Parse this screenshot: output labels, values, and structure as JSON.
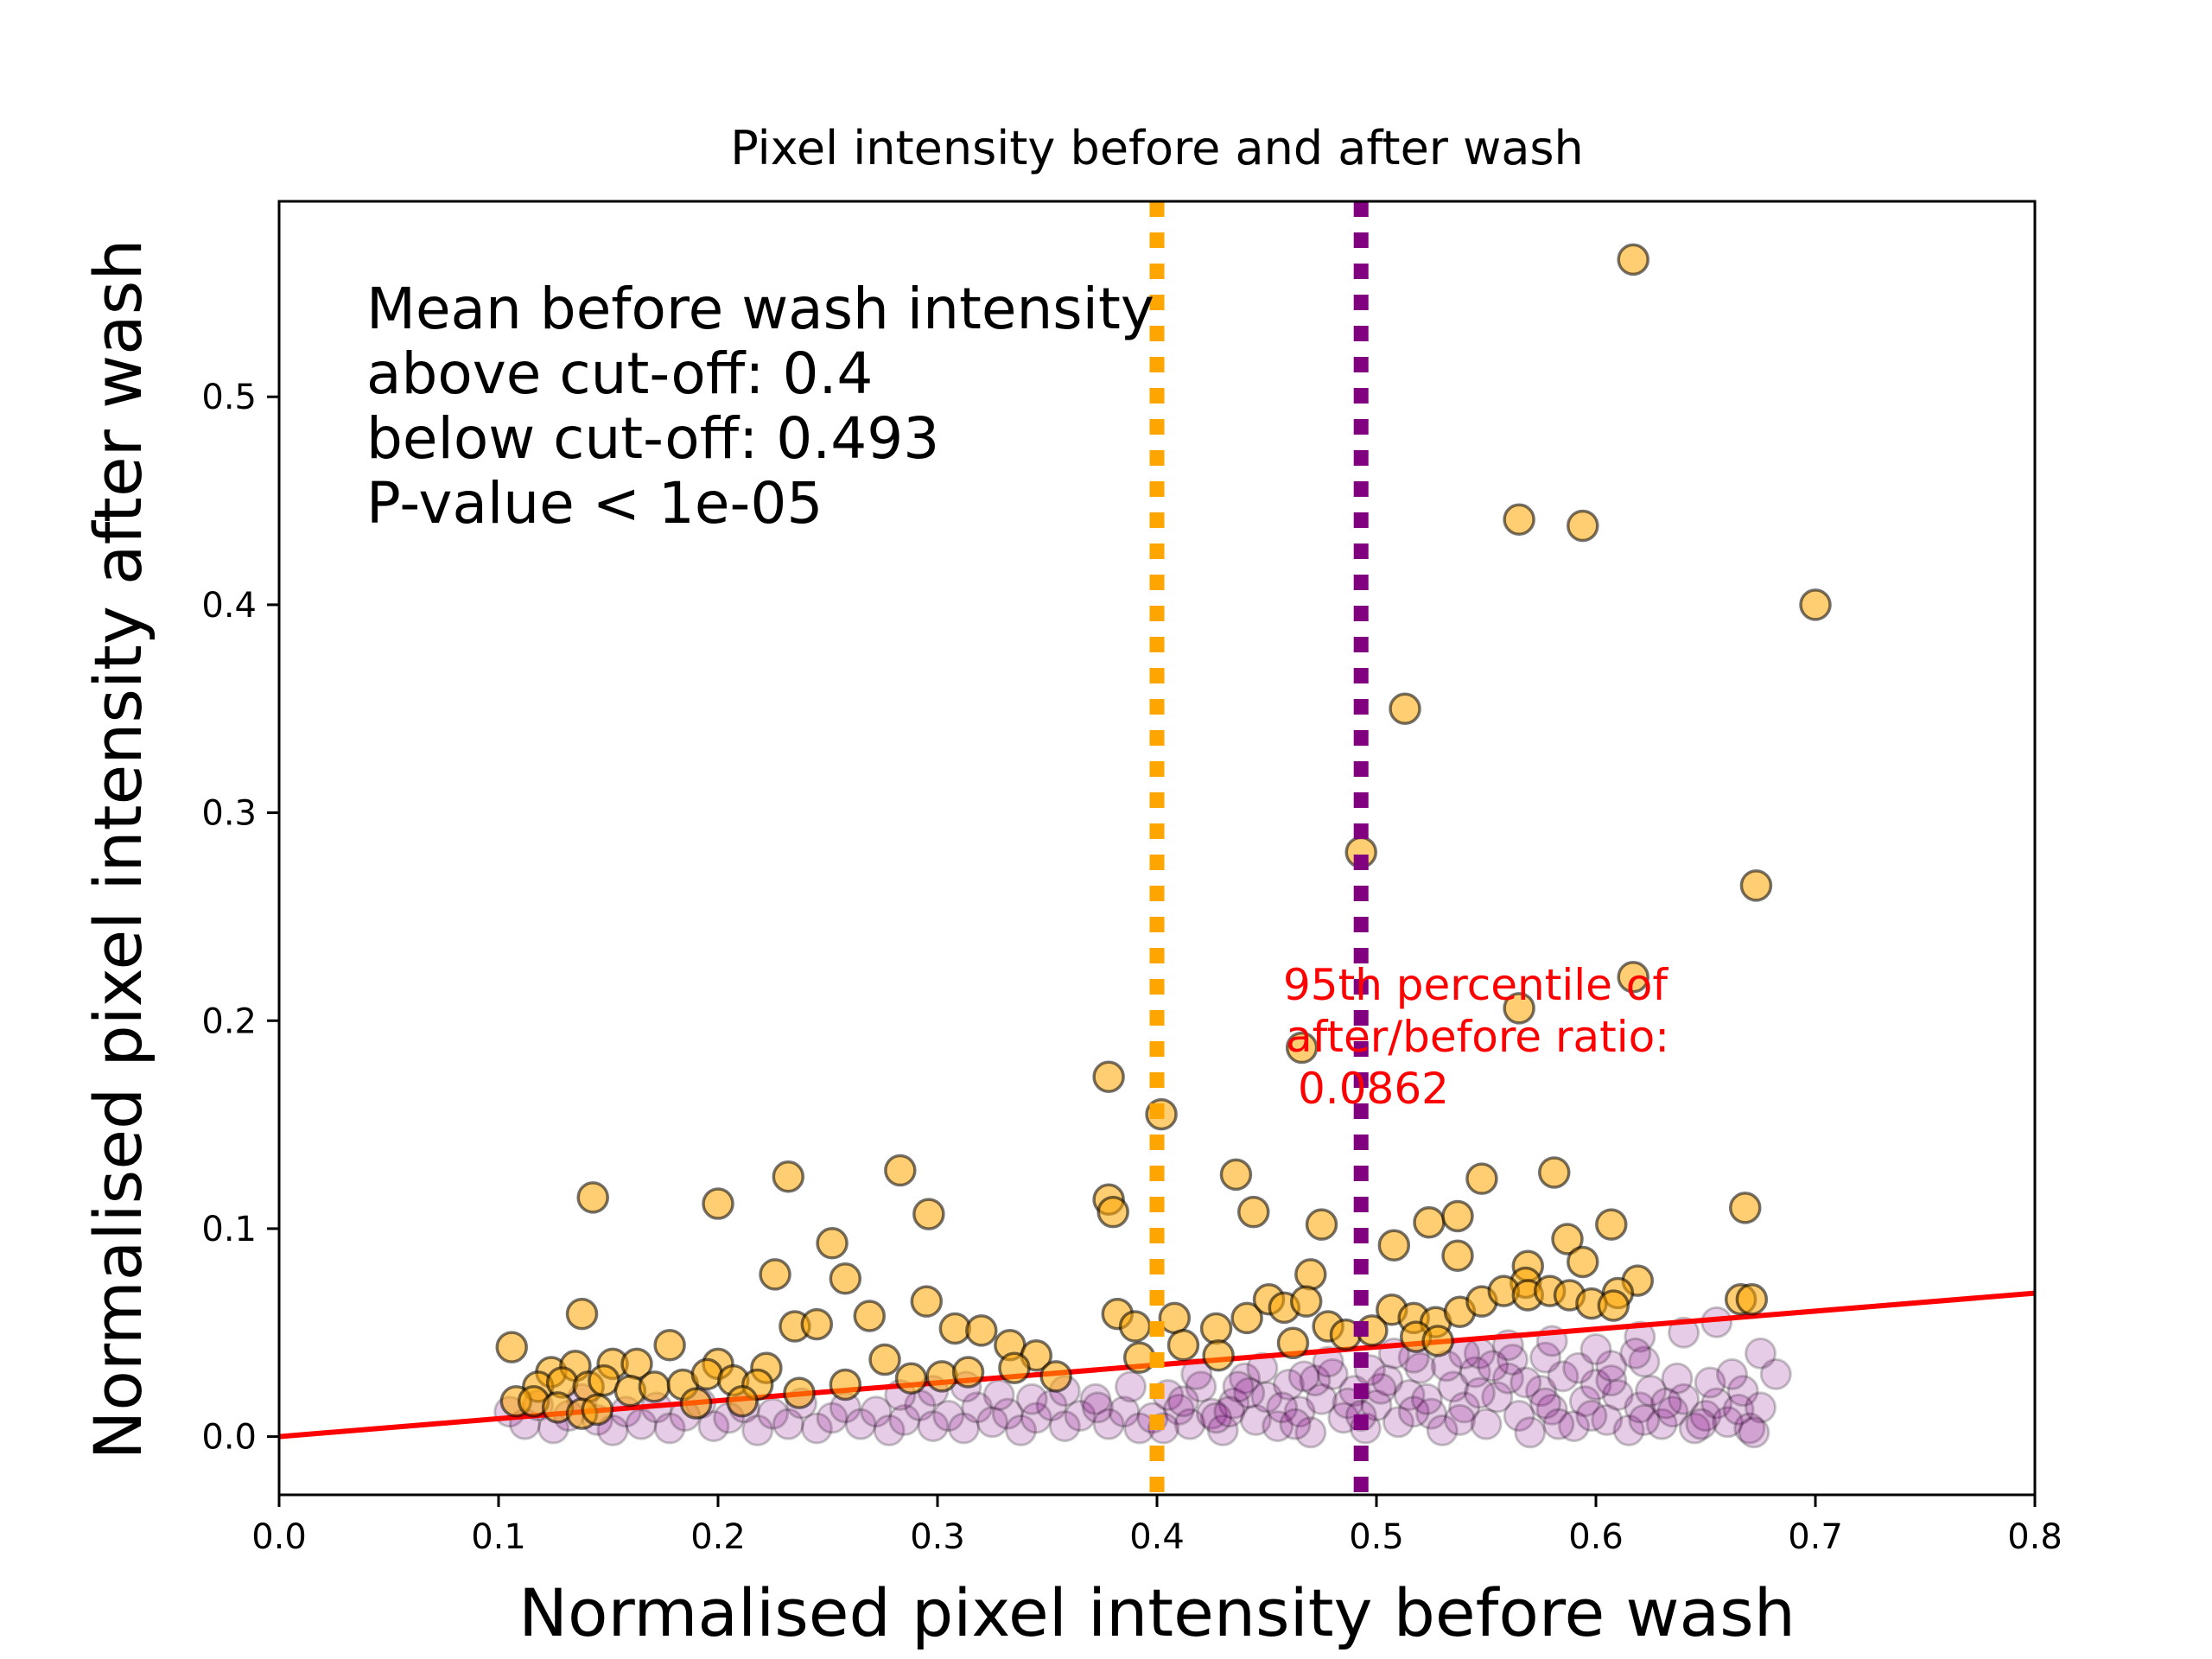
{
  "chart_data": {
    "type": "scatter",
    "title": "Pixel intensity before and after wash",
    "xlabel": "Normalised pixel intensity before wash",
    "ylabel": "Normalised pixel intensity after wash",
    "xlim": [
      0.0,
      0.8
    ],
    "ylim": [
      -0.028,
      0.594
    ],
    "x_ticks": [
      "0.0",
      "0.1",
      "0.2",
      "0.3",
      "0.4",
      "0.5",
      "0.6",
      "0.7",
      "0.8"
    ],
    "y_ticks": [
      "0.0",
      "0.1",
      "0.2",
      "0.3",
      "0.4",
      "0.5"
    ],
    "grid": false,
    "colors": {
      "above": "#ffa500",
      "below": "#800080",
      "fit_line": "#ff0000",
      "cutoff_above_line": "#ffa500",
      "cutoff_below_line": "#800080",
      "annotation": "#ff0000"
    },
    "stats_text": [
      "Mean before wash intensity",
      "above cut-off: 0.4",
      "below cut-off: 0.493",
      "P-value < 1e-05"
    ],
    "percentile_text": [
      "95th percentile of",
      "after/before ratio:",
      "0.0862"
    ],
    "vlines": [
      {
        "x": 0.4,
        "color": "#ffa500",
        "style": "dotted"
      },
      {
        "x": 0.493,
        "color": "#800080",
        "style": "dotted"
      }
    ],
    "fit_line": {
      "slope": 0.0862,
      "intercept": 0.0,
      "x_range": [
        0.0,
        0.8
      ]
    },
    "series": [
      {
        "group": "below",
        "points": [
          [
            0.105,
            0.012
          ],
          [
            0.112,
            0.006
          ],
          [
            0.118,
            0.015
          ],
          [
            0.125,
            0.004
          ],
          [
            0.132,
            0.01
          ],
          [
            0.138,
            0.018
          ],
          [
            0.145,
            0.008
          ],
          [
            0.152,
            0.003
          ],
          [
            0.158,
            0.012
          ],
          [
            0.165,
            0.006
          ],
          [
            0.172,
            0.014
          ],
          [
            0.178,
            0.004
          ],
          [
            0.185,
            0.01
          ],
          [
            0.192,
            0.016
          ],
          [
            0.198,
            0.005
          ],
          [
            0.205,
            0.009
          ],
          [
            0.212,
            0.014
          ],
          [
            0.218,
            0.003
          ],
          [
            0.225,
            0.011
          ],
          [
            0.232,
            0.006
          ],
          [
            0.238,
            0.016
          ],
          [
            0.245,
            0.004
          ],
          [
            0.252,
            0.009
          ],
          [
            0.258,
            0.014
          ],
          [
            0.265,
            0.006
          ],
          [
            0.272,
            0.012
          ],
          [
            0.278,
            0.003
          ],
          [
            0.285,
            0.008
          ],
          [
            0.292,
            0.015
          ],
          [
            0.298,
            0.005
          ],
          [
            0.305,
            0.01
          ],
          [
            0.312,
            0.004
          ],
          [
            0.318,
            0.014
          ],
          [
            0.325,
            0.007
          ],
          [
            0.332,
            0.011
          ],
          [
            0.338,
            0.003
          ],
          [
            0.345,
            0.009
          ],
          [
            0.352,
            0.015
          ],
          [
            0.358,
            0.005
          ],
          [
            0.365,
            0.01
          ],
          [
            0.372,
            0.018
          ],
          [
            0.378,
            0.006
          ],
          [
            0.385,
            0.012
          ],
          [
            0.392,
            0.004
          ],
          [
            0.398,
            0.009
          ],
          [
            0.405,
            0.02
          ],
          [
            0.41,
            0.013
          ],
          [
            0.415,
            0.006
          ],
          [
            0.42,
            0.024
          ],
          [
            0.425,
            0.011
          ],
          [
            0.43,
            0.003
          ],
          [
            0.435,
            0.016
          ],
          [
            0.44,
            0.028
          ],
          [
            0.445,
            0.008
          ],
          [
            0.45,
            0.019
          ],
          [
            0.455,
            0.005
          ],
          [
            0.46,
            0.025
          ],
          [
            0.465,
            0.012
          ],
          [
            0.47,
            0.002
          ],
          [
            0.475,
            0.018
          ],
          [
            0.48,
            0.03
          ],
          [
            0.485,
            0.009
          ],
          [
            0.49,
            0.022
          ],
          [
            0.495,
            0.004
          ],
          [
            0.5,
            0.015
          ],
          [
            0.505,
            0.027
          ],
          [
            0.51,
            0.007
          ],
          [
            0.515,
            0.02
          ],
          [
            0.52,
            0.033
          ],
          [
            0.525,
            0.011
          ],
          [
            0.53,
            0.003
          ],
          [
            0.535,
            0.024
          ],
          [
            0.54,
            0.014
          ],
          [
            0.545,
            0.031
          ],
          [
            0.55,
            0.006
          ],
          [
            0.555,
            0.019
          ],
          [
            0.56,
            0.028
          ],
          [
            0.565,
            0.01
          ],
          [
            0.57,
            0.002
          ],
          [
            0.575,
            0.022
          ],
          [
            0.58,
            0.013
          ],
          [
            0.585,
            0.029
          ],
          [
            0.59,
            0.005
          ],
          [
            0.595,
            0.017
          ],
          [
            0.6,
            0.025
          ],
          [
            0.605,
            0.008
          ],
          [
            0.61,
            0.02
          ],
          [
            0.615,
            0.003
          ],
          [
            0.62,
            0.014
          ],
          [
            0.625,
            0.022
          ],
          [
            0.63,
            0.006
          ],
          [
            0.635,
            0.012
          ],
          [
            0.64,
            0.018
          ],
          [
            0.645,
            0.004
          ],
          [
            0.65,
            0.01
          ],
          [
            0.655,
            0.016
          ],
          [
            0.66,
            0.007
          ],
          [
            0.665,
            0.013
          ],
          [
            0.67,
            0.004
          ],
          [
            0.412,
            0.017
          ],
          [
            0.427,
            0.009
          ],
          [
            0.442,
            0.021
          ],
          [
            0.457,
            0.014
          ],
          [
            0.472,
            0.027
          ],
          [
            0.487,
            0.016
          ],
          [
            0.502,
            0.023
          ],
          [
            0.517,
            0.012
          ],
          [
            0.532,
            0.034
          ],
          [
            0.547,
            0.021
          ],
          [
            0.562,
            0.037
          ],
          [
            0.577,
            0.016
          ],
          [
            0.592,
            0.033
          ],
          [
            0.607,
            0.027
          ],
          [
            0.622,
            0.036
          ],
          [
            0.517,
            0.038
          ],
          [
            0.547,
            0.04
          ],
          [
            0.577,
            0.038
          ],
          [
            0.607,
            0.034
          ],
          [
            0.497,
            0.032
          ],
          [
            0.467,
            0.029
          ],
          [
            0.437,
            0.024
          ],
          [
            0.622,
            0.008
          ],
          [
            0.637,
            0.028
          ],
          [
            0.652,
            0.026
          ],
          [
            0.667,
            0.022
          ],
          [
            0.682,
            0.03
          ],
          [
            0.675,
            0.04
          ],
          [
            0.655,
            0.055
          ],
          [
            0.64,
            0.05
          ],
          [
            0.62,
            0.048
          ],
          [
            0.6,
            0.042
          ],
          [
            0.58,
            0.046
          ],
          [
            0.56,
            0.044
          ],
          [
            0.54,
            0.04
          ],
          [
            0.675,
            0.014
          ],
          [
            0.672,
            0.002
          ],
          [
            0.662,
            0.03
          ],
          [
            0.648,
            0.006
          ],
          [
            0.632,
            0.016
          ],
          [
            0.618,
            0.04
          ],
          [
            0.598,
            0.01
          ],
          [
            0.583,
            0.006
          ],
          [
            0.568,
            0.026
          ],
          [
            0.553,
            0.034
          ],
          [
            0.538,
            0.008
          ],
          [
            0.523,
            0.018
          ],
          [
            0.508,
            0.04
          ],
          [
            0.493,
            0.01
          ],
          [
            0.478,
            0.036
          ],
          [
            0.463,
            0.006
          ],
          [
            0.448,
            0.033
          ],
          [
            0.433,
            0.012
          ],
          [
            0.418,
            0.03
          ],
          [
            0.403,
            0.004
          ],
          [
            0.388,
            0.024
          ],
          [
            0.373,
            0.014
          ],
          [
            0.358,
            0.022
          ],
          [
            0.343,
            0.018
          ],
          [
            0.328,
            0.02
          ],
          [
            0.313,
            0.024
          ],
          [
            0.298,
            0.022
          ],
          [
            0.283,
            0.02
          ]
        ]
      },
      {
        "group": "above",
        "points": [
          [
            0.617,
            0.566
          ],
          [
            0.565,
            0.441
          ],
          [
            0.594,
            0.438
          ],
          [
            0.7,
            0.4
          ],
          [
            0.513,
            0.35
          ],
          [
            0.493,
            0.281
          ],
          [
            0.673,
            0.265
          ],
          [
            0.617,
            0.221
          ],
          [
            0.565,
            0.206
          ],
          [
            0.466,
            0.187
          ],
          [
            0.378,
            0.173
          ],
          [
            0.402,
            0.155
          ],
          [
            0.283,
            0.128
          ],
          [
            0.232,
            0.125
          ],
          [
            0.436,
            0.126
          ],
          [
            0.581,
            0.127
          ],
          [
            0.143,
            0.115
          ],
          [
            0.2,
            0.112
          ],
          [
            0.378,
            0.114
          ],
          [
            0.38,
            0.108
          ],
          [
            0.296,
            0.107
          ],
          [
            0.444,
            0.108
          ],
          [
            0.475,
            0.102
          ],
          [
            0.524,
            0.103
          ],
          [
            0.537,
            0.106
          ],
          [
            0.548,
            0.124
          ],
          [
            0.607,
            0.102
          ],
          [
            0.668,
            0.11
          ],
          [
            0.252,
            0.093
          ],
          [
            0.508,
            0.092
          ],
          [
            0.587,
            0.095
          ],
          [
            0.537,
            0.087
          ],
          [
            0.594,
            0.084
          ],
          [
            0.569,
            0.082
          ],
          [
            0.226,
            0.078
          ],
          [
            0.258,
            0.076
          ],
          [
            0.619,
            0.075
          ],
          [
            0.568,
            0.074
          ],
          [
            0.47,
            0.078
          ],
          [
            0.61,
            0.069
          ],
          [
            0.295,
            0.065
          ],
          [
            0.269,
            0.058
          ],
          [
            0.138,
            0.059
          ],
          [
            0.235,
            0.053
          ],
          [
            0.245,
            0.054
          ],
          [
            0.308,
            0.052
          ],
          [
            0.32,
            0.051
          ],
          [
            0.382,
            0.059
          ],
          [
            0.39,
            0.053
          ],
          [
            0.408,
            0.057
          ],
          [
            0.427,
            0.052
          ],
          [
            0.441,
            0.057
          ],
          [
            0.451,
            0.066
          ],
          [
            0.458,
            0.062
          ],
          [
            0.468,
            0.065
          ],
          [
            0.478,
            0.053
          ],
          [
            0.486,
            0.049
          ],
          [
            0.507,
            0.061
          ],
          [
            0.517,
            0.057
          ],
          [
            0.527,
            0.055
          ],
          [
            0.538,
            0.06
          ],
          [
            0.548,
            0.065
          ],
          [
            0.558,
            0.07
          ],
          [
            0.569,
            0.068
          ],
          [
            0.579,
            0.07
          ],
          [
            0.588,
            0.068
          ],
          [
            0.598,
            0.064
          ],
          [
            0.608,
            0.063
          ],
          [
            0.666,
            0.066
          ],
          [
            0.671,
            0.066
          ],
          [
            0.106,
            0.043
          ],
          [
            0.178,
            0.044
          ],
          [
            0.124,
            0.031
          ],
          [
            0.135,
            0.034
          ],
          [
            0.152,
            0.035
          ],
          [
            0.163,
            0.035
          ],
          [
            0.2,
            0.035
          ],
          [
            0.222,
            0.033
          ],
          [
            0.276,
            0.037
          ],
          [
            0.333,
            0.044
          ],
          [
            0.345,
            0.039
          ],
          [
            0.392,
            0.038
          ],
          [
            0.412,
            0.044
          ],
          [
            0.428,
            0.039
          ],
          [
            0.118,
            0.024
          ],
          [
            0.129,
            0.026
          ],
          [
            0.141,
            0.024
          ],
          [
            0.148,
            0.027
          ],
          [
            0.16,
            0.022
          ],
          [
            0.171,
            0.024
          ],
          [
            0.184,
            0.025
          ],
          [
            0.195,
            0.03
          ],
          [
            0.207,
            0.027
          ],
          [
            0.218,
            0.025
          ],
          [
            0.237,
            0.021
          ],
          [
            0.258,
            0.025
          ],
          [
            0.288,
            0.028
          ],
          [
            0.302,
            0.029
          ],
          [
            0.314,
            0.031
          ],
          [
            0.335,
            0.033
          ],
          [
            0.354,
            0.029
          ],
          [
            0.108,
            0.017
          ],
          [
            0.116,
            0.017
          ],
          [
            0.127,
            0.014
          ],
          [
            0.138,
            0.011
          ],
          [
            0.145,
            0.013
          ],
          [
            0.19,
            0.016
          ],
          [
            0.211,
            0.017
          ],
          [
            0.462,
            0.045
          ],
          [
            0.498,
            0.051
          ],
          [
            0.518,
            0.048
          ],
          [
            0.528,
            0.046
          ]
        ]
      }
    ]
  }
}
